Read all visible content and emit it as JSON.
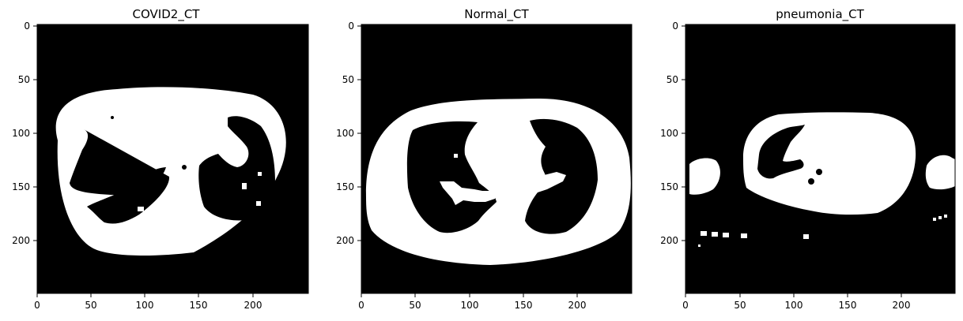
{
  "panels": [
    {
      "title": "COVID2_CT",
      "xticks": [
        "0",
        "50",
        "100",
        "150",
        "200"
      ],
      "yticks": [
        "0",
        "50",
        "100",
        "150",
        "200"
      ]
    },
    {
      "title": "Normal_CT",
      "xticks": [
        "0",
        "50",
        "100",
        "150",
        "200"
      ],
      "yticks": [
        "0",
        "50",
        "100",
        "150",
        "200"
      ]
    },
    {
      "title": "pneumonia_CT",
      "xticks": [
        "0",
        "50",
        "100",
        "150",
        "200"
      ],
      "yticks": [
        "0",
        "50",
        "100",
        "150",
        "200"
      ]
    }
  ],
  "colors": {
    "background": "#000000",
    "foreground": "#ffffff"
  }
}
